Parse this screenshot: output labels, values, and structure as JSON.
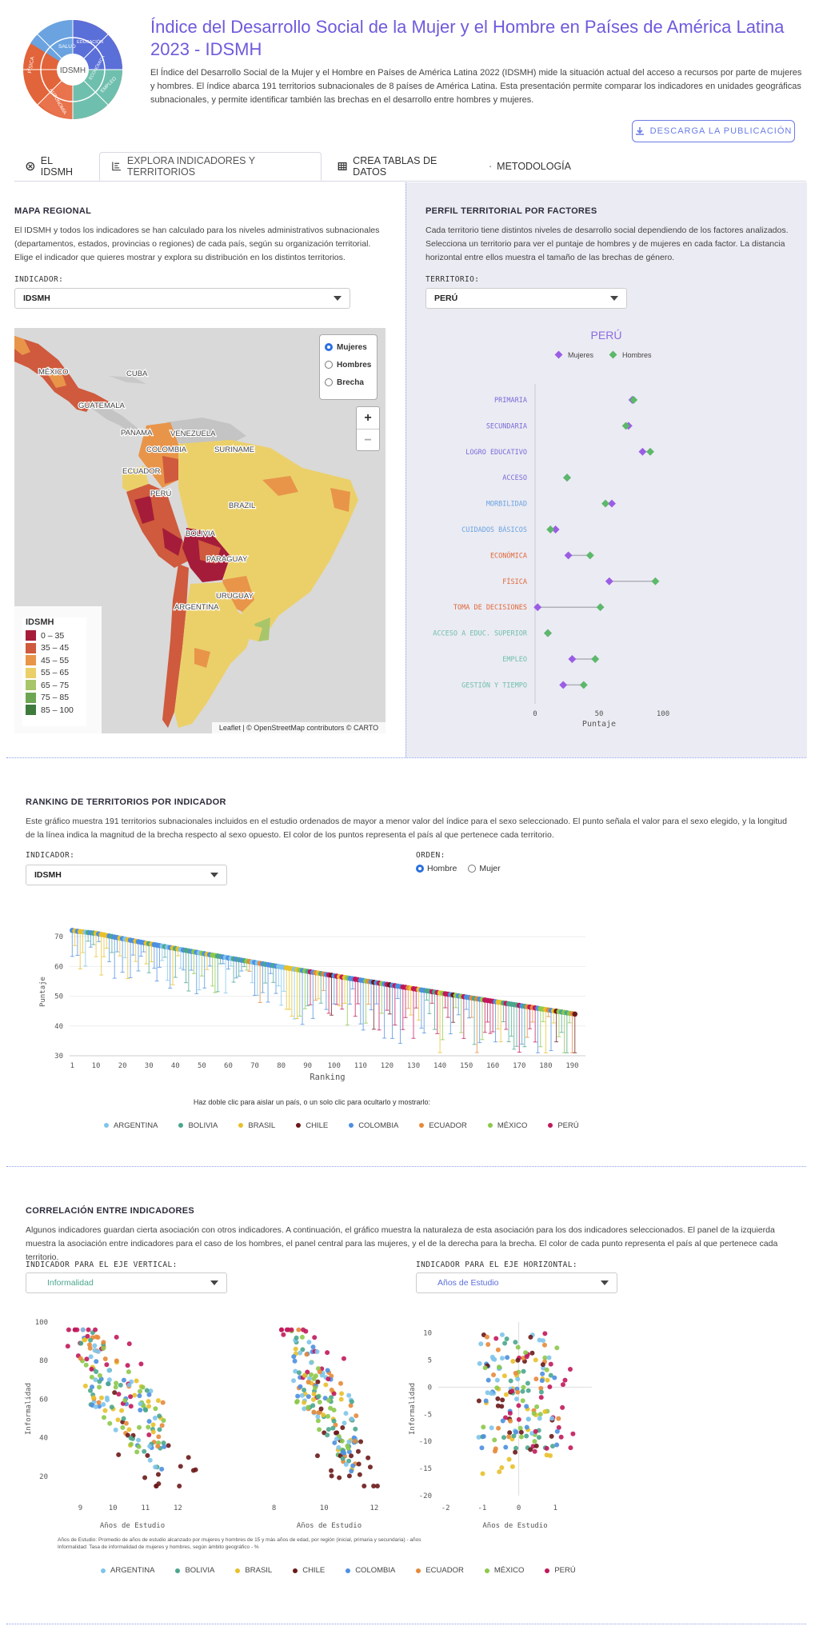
{
  "header": {
    "title": "Índice del Desarrollo Social de la Mujer y el Hombre en Países de América Latina 2023 - IDSMH",
    "description": "El Índice del Desarrollo Social de la Mujer y el Hombre en Países de América Latina 2022 (IDSMH) mide la situación actual del acceso a recursos por parte de mujeres y hombres. El índice abarca 191 territorios subnacionales de 8 países de América Latina. Esta presentación permite comparar los indicadores en unidades geográficas subnacionales, y permite identificar también las brechas en el desarrollo entre hombres y mujeres.",
    "download_label": "DESCARGA LA PUBLICACIÓN",
    "logo": {
      "center": "IDSMH",
      "segments": [
        "SALUD",
        "EDUCACIÓN",
        "FÍSICA",
        "AUTONOMÍA",
        "ECONÓMICA",
        "EMPLEO"
      ]
    }
  },
  "tabs": [
    {
      "label": "EL IDSMH",
      "icon": "circle-x-icon"
    },
    {
      "label": "EXPLORA INDICADORES Y TERRITORIOS",
      "icon": "chart-icon"
    },
    {
      "label": "CREA TABLAS DE DATOS",
      "icon": "table-icon"
    },
    {
      "label": "METODOLOGÍA",
      "icon": "flask-icon"
    }
  ],
  "map_section": {
    "title": "MAPA REGIONAL",
    "text": "El IDSMH y todos los indicadores se han calculado para los niveles administrativos subnacionales (departamentos, estados, provincias o regiones) de cada país, según su organización territorial. Elige el indicador que quieres mostrar y explora su distribución en los distintos territorios.",
    "indicator_label": "INDICADOR:",
    "indicator_value": "IDSMH",
    "radio": [
      "Mujeres",
      "Hombres",
      "Brecha"
    ],
    "zoom_in": "+",
    "zoom_out": "−",
    "legend_title": "IDSMH",
    "legend": [
      {
        "label": "0 – 35",
        "color": "#a51c3a"
      },
      {
        "label": "35 – 45",
        "color": "#cf5a3d"
      },
      {
        "label": "45 – 55",
        "color": "#e8954a"
      },
      {
        "label": "55 – 65",
        "color": "#ebd06a"
      },
      {
        "label": "65 – 75",
        "color": "#a9c56a"
      },
      {
        "label": "75 – 85",
        "color": "#6da653"
      },
      {
        "label": "85 – 100",
        "color": "#3e7a3c"
      }
    ],
    "attribution": "Leaflet | © OpenStreetMap contributors © CARTO",
    "place_labels": [
      "MÉXICO",
      "CUBA",
      "GUATEMALA",
      "PANAMA",
      "VENEZUELA",
      "COLOMBIA",
      "SURINAME",
      "ECUADOR",
      "PERÚ",
      "BRAZIL",
      "BOLIVIA",
      "PARAGUAY",
      "URUGUAY",
      "ARGENTINA"
    ]
  },
  "profile_section": {
    "title": "PERFIL TERRITORIAL POR FACTORES",
    "text": "Cada territorio tiene distintos niveles de desarrollo social dependiendo de los factores analizados. Selecciona un territorio para ver el puntaje de hombres y de mujeres en cada factor. La distancia horizontal entre ellos muestra el tamaño de las brechas de género.",
    "territory_label": "TERRITORIO:",
    "territory_value": "PERÚ",
    "chart_data": {
      "type": "scatter",
      "title": "PERÚ",
      "legend": [
        "Mujeres",
        "Hombres"
      ],
      "colors": {
        "Mujeres": "#9b5de5",
        "Hombres": "#5cb86a"
      },
      "xlabel": "Puntaje",
      "xlim": [
        0,
        100
      ],
      "xticks": [
        0,
        50,
        100
      ],
      "categories": [
        {
          "label": "PRIMARIA",
          "mujeres": 76,
          "hombres": 77,
          "color": "#7a6bd8"
        },
        {
          "label": "SECUNDARIA",
          "mujeres": 73,
          "hombres": 71,
          "color": "#7a6bd8"
        },
        {
          "label": "LOGRO EDUCATIVO",
          "mujeres": 84,
          "hombres": 90,
          "color": "#7a6bd8"
        },
        {
          "label": "ACCESO",
          "mujeres": 25,
          "hombres": 25,
          "color": "#7a6bd8"
        },
        {
          "label": "MORBILIDAD",
          "mujeres": 60,
          "hombres": 55,
          "color": "#6aa3e0"
        },
        {
          "label": "CUIDADOS BÁSICOS",
          "mujeres": 16,
          "hombres": 12,
          "color": "#6aa3e0"
        },
        {
          "label": "ECONÓMICA",
          "mujeres": 26,
          "hombres": 43,
          "color": "#e0683a"
        },
        {
          "label": "FÍSICA",
          "mujeres": 58,
          "hombres": 94,
          "color": "#e0683a"
        },
        {
          "label": "TOMA DE DECISIONES",
          "mujeres": 2,
          "hombres": 51,
          "color": "#e0683a"
        },
        {
          "label": "ACCESO A EDUC. SUPERIOR",
          "mujeres": 10,
          "hombres": 10,
          "color": "#6fbfae"
        },
        {
          "label": "EMPLEO",
          "mujeres": 29,
          "hombres": 47,
          "color": "#6fbfae"
        },
        {
          "label": "GESTIÓN Y TIEMPO",
          "mujeres": 22,
          "hombres": 38,
          "color": "#6fbfae"
        }
      ]
    }
  },
  "ranking_section": {
    "title": "RANKING DE TERRITORIOS POR INDICADOR",
    "text": "Este gráfico muestra 191 territorios subnacionales incluidos en el estudio ordenados de mayor a menor valor del índice para el sexo seleccionado. El punto señala el valor para el sexo elegido, y la longitud de la línea indica la magnitud de la brecha respecto al sexo opuesto. El color de los puntos representa el país al que pertenece cada territorio.",
    "indicator_label": "INDICADOR:",
    "indicator_value": "IDSMH",
    "order_label": "ORDEN:",
    "order_options": [
      "Hombre",
      "Mujer"
    ],
    "hint": "Haz doble clic para aislar un país, o un solo clic para ocultarlo y mostrarlo:",
    "chart_data": {
      "type": "scatter",
      "xlabel": "Ranking",
      "ylabel": "Puntaje",
      "xlim": [
        0,
        195
      ],
      "ylim": [
        30,
        73
      ],
      "xticks": [
        1,
        10,
        20,
        30,
        40,
        50,
        60,
        70,
        80,
        90,
        100,
        110,
        120,
        130,
        140,
        150,
        160,
        170,
        180,
        190
      ],
      "yticks": [
        30,
        40,
        50,
        60,
        70
      ],
      "count": 191,
      "start_value": 73,
      "end_value": 44,
      "note": ""
    }
  },
  "countries": [
    {
      "name": "ARGENTINA",
      "color": "#7fc4ea"
    },
    {
      "name": "BOLIVIA",
      "color": "#4aa68d"
    },
    {
      "name": "BRASIL",
      "color": "#e8c02a"
    },
    {
      "name": "CHILE",
      "color": "#6b1a1a"
    },
    {
      "name": "COLOMBIA",
      "color": "#4d8fe0"
    },
    {
      "name": "ECUADOR",
      "color": "#e58a3a"
    },
    {
      "name": "MÉXICO",
      "color": "#8cc84b"
    },
    {
      "name": "PERÚ",
      "color": "#c2185b"
    }
  ],
  "corr_section": {
    "title": "CORRELACIÓN ENTRE INDICADORES",
    "text": "Algunos indicadores guardan cierta asociación con otros indicadores. A continuación, el gráfico muestra la naturaleza de esta asociación para los dos indicadores seleccionados. El panel de la izquierda muestra la asociación entre indicadores para el caso de los hombres, el panel central para las mujeres, y el de la derecha para la brecha. El color de cada punto representa el país al que pertenece cada territorio.",
    "y_label": "INDICADOR PARA EL EJE VERTICAL:",
    "y_value": "Informalidad",
    "x_label": "INDICADOR PARA EL EJE HORIZONTAL:",
    "x_value": "Años de Estudio",
    "footnote1": "Años de Estudio: Promedio de años de estudio alcanzado por mujeres y hombres de 15 y más años de edad, por región (inicial, primaria y secundaria) - años",
    "footnote2": "Informalidad: Tasa de informalidad de mujeres y hombres, según ámbito geográfico - %",
    "chart_data": [
      {
        "type": "scatter",
        "panel": "hombres",
        "xlabel": "Años de Estudio",
        "ylabel": "Informalidad",
        "xticks": [
          9,
          10,
          11,
          12
        ],
        "yticks": [
          20,
          40,
          60,
          80,
          100
        ],
        "xlim": [
          8.2,
          13
        ],
        "ylim": [
          10,
          100
        ]
      },
      {
        "type": "scatter",
        "panel": "mujeres",
        "xlabel": "Años de Estudio",
        "ylabel": "",
        "xticks": [
          8,
          10,
          12
        ],
        "yticks": [],
        "xlim": [
          7.6,
          12.8
        ],
        "ylim": [
          10,
          100
        ]
      },
      {
        "type": "scatter",
        "panel": "brecha",
        "xlabel": "Años de Estudio",
        "ylabel": "Informalidad",
        "xticks": [
          -2,
          -1,
          0,
          1
        ],
        "yticks": [
          -20,
          -15,
          -10,
          -5,
          0,
          5,
          10
        ],
        "xlim": [
          -2.2,
          2
        ],
        "ylim": [
          -20,
          12
        ]
      }
    ]
  }
}
